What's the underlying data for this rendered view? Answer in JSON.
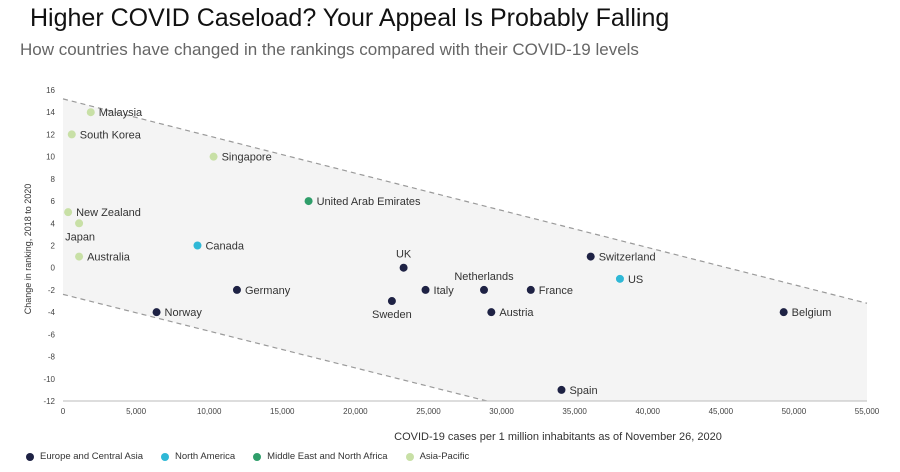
{
  "title": "Higher COVID Caseload? Your Appeal Is Probably Falling",
  "subtitle": "How countries have changed in the rankings compared with their COVID-19 levels",
  "chart_data": {
    "type": "scatter",
    "xlabel": "COVID-19 cases per 1 million inhabitants as of November 26, 2020",
    "ylabel": "Change in ranking, 2018 to 2020",
    "xlim": [
      0,
      55000
    ],
    "ylim": [
      -12,
      16
    ],
    "xticks": [
      0,
      5000,
      10000,
      15000,
      20000,
      25000,
      30000,
      35000,
      40000,
      45000,
      50000,
      55000
    ],
    "xtick_labels": [
      "0",
      "5,000",
      "10,000",
      "15,000",
      "20,000",
      "25,000",
      "30,000",
      "35,000",
      "40,000",
      "45,000",
      "50,000",
      "55,000"
    ],
    "yticks": [
      -12,
      -10,
      -8,
      -6,
      -4,
      -2,
      0,
      2,
      4,
      6,
      8,
      10,
      12,
      14,
      16
    ],
    "ytick_labels": [
      "-12",
      "-10",
      "-8",
      "-6",
      "-4",
      "-2",
      "0",
      "2",
      "4",
      "6",
      "8",
      "10",
      "12",
      "14",
      "16"
    ],
    "grid": false,
    "legend_position": "bottom-left",
    "trend_band": {
      "upper": [
        [
          0,
          15.2
        ],
        [
          55000,
          -3.2
        ]
      ],
      "lower": [
        [
          0,
          -2.4
        ],
        [
          29000,
          -12
        ]
      ]
    },
    "series": [
      {
        "name": "Europe and Central Asia",
        "color": "#1e2244",
        "points": [
          {
            "label": "Norway",
            "x": 6400,
            "y": -4,
            "pos": "right"
          },
          {
            "label": "Germany",
            "x": 11900,
            "y": -2,
            "pos": "right"
          },
          {
            "label": "Sweden",
            "x": 22500,
            "y": -3,
            "pos": "below"
          },
          {
            "label": "UK",
            "x": 23300,
            "y": 0,
            "pos": "above"
          },
          {
            "label": "Italy",
            "x": 24800,
            "y": -2,
            "pos": "right"
          },
          {
            "label": "Netherlands",
            "x": 28800,
            "y": -2,
            "pos": "above"
          },
          {
            "label": "Austria",
            "x": 29300,
            "y": -4,
            "pos": "right"
          },
          {
            "label": "France",
            "x": 32000,
            "y": -2,
            "pos": "right"
          },
          {
            "label": "Spain",
            "x": 34100,
            "y": -11,
            "pos": "right"
          },
          {
            "label": "Switzerland",
            "x": 36100,
            "y": 1,
            "pos": "right"
          },
          {
            "label": "Belgium",
            "x": 49300,
            "y": -4,
            "pos": "right"
          }
        ]
      },
      {
        "name": "North America",
        "color": "#2fb8d6",
        "points": [
          {
            "label": "Canada",
            "x": 9200,
            "y": 2,
            "pos": "right"
          },
          {
            "label": "US",
            "x": 38100,
            "y": -1,
            "pos": "right"
          }
        ]
      },
      {
        "name": "Middle East and North Africa",
        "color": "#2f9e6a",
        "points": [
          {
            "label": "United Arab Emirates",
            "x": 16800,
            "y": 6,
            "pos": "right"
          }
        ]
      },
      {
        "name": "Asia-Pacific",
        "color": "#c8e0a6",
        "points": [
          {
            "label": "Malaysia",
            "x": 1900,
            "y": 14,
            "pos": "right"
          },
          {
            "label": "South Korea",
            "x": 600,
            "y": 12,
            "pos": "right"
          },
          {
            "label": "Singapore",
            "x": 10300,
            "y": 10,
            "pos": "right"
          },
          {
            "label": "New Zealand",
            "x": 350,
            "y": 5,
            "pos": "right"
          },
          {
            "label": "Japan",
            "x": 1100,
            "y": 4,
            "pos": "belowleft"
          },
          {
            "label": "Australia",
            "x": 1100,
            "y": 1,
            "pos": "right"
          }
        ]
      }
    ]
  }
}
